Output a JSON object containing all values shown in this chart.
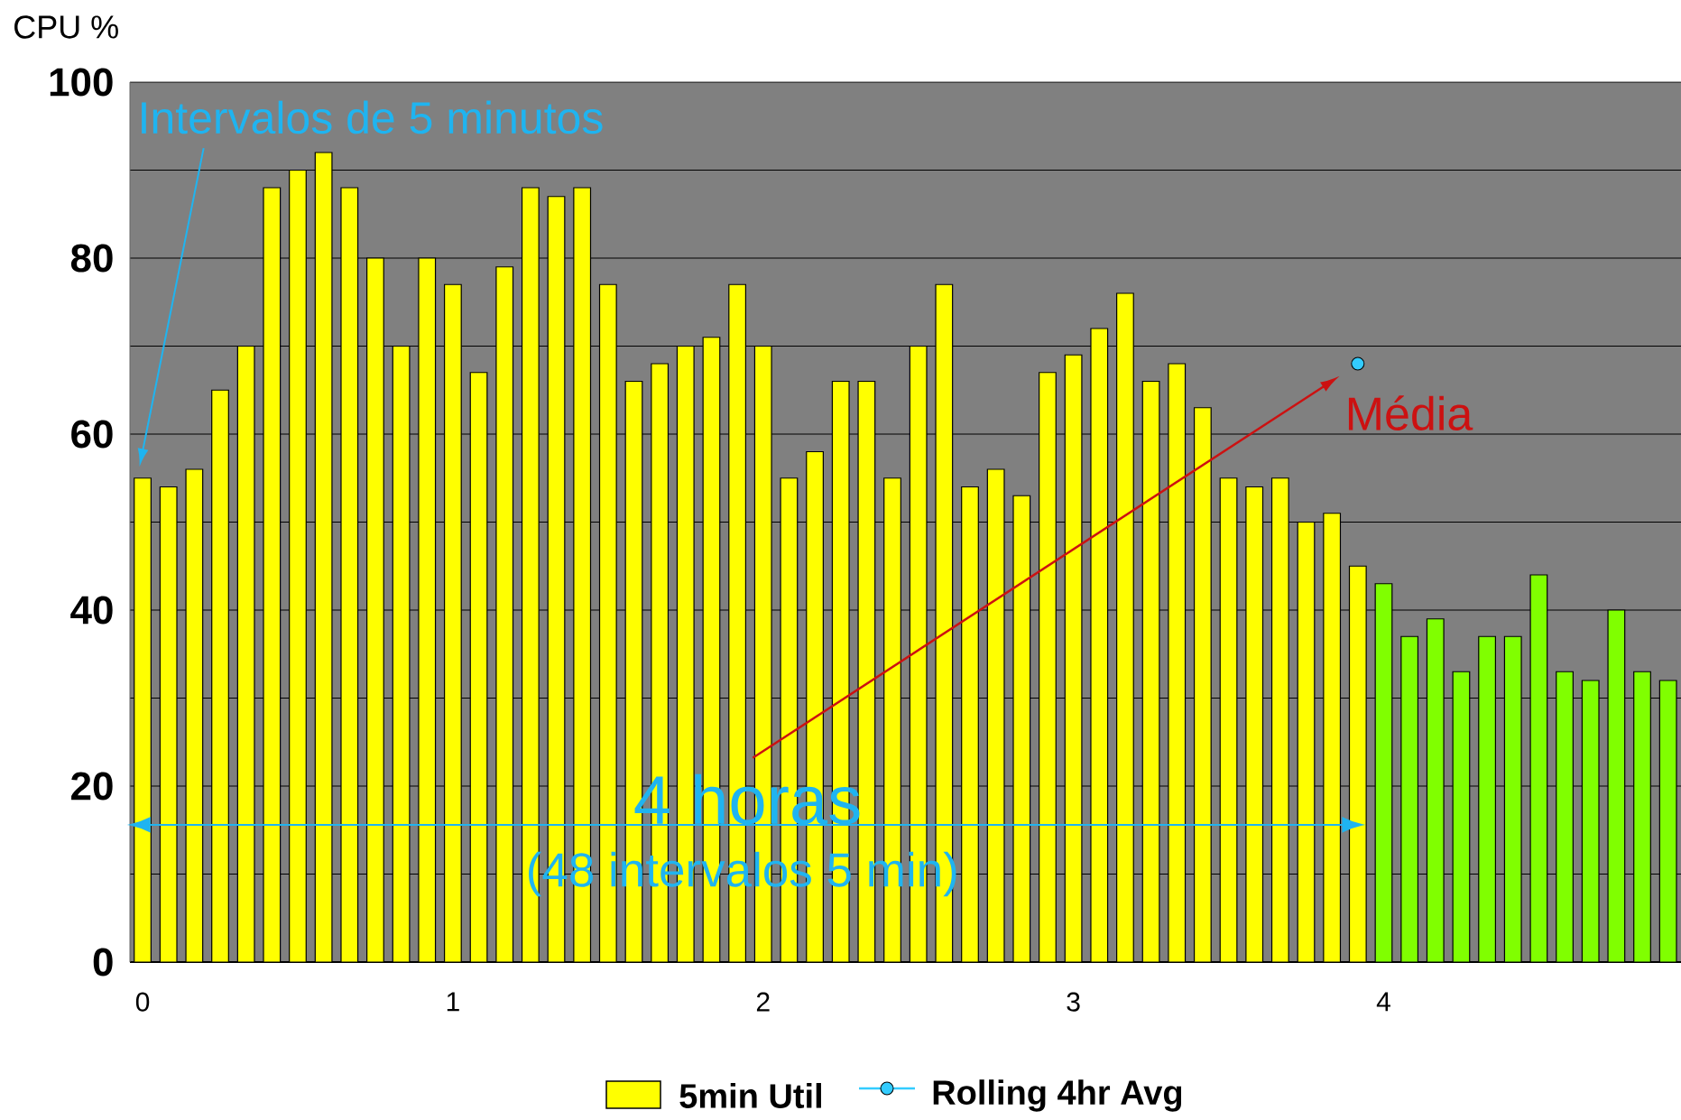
{
  "chart_data": {
    "type": "bar",
    "ylabel": "CPU %",
    "categories": [
      "0",
      null,
      null,
      null,
      null,
      null,
      null,
      null,
      null,
      null,
      null,
      null,
      "1",
      null,
      null,
      null,
      null,
      null,
      null,
      null,
      null,
      null,
      null,
      null,
      "2",
      null,
      null,
      null,
      null,
      null,
      null,
      null,
      null,
      null,
      null,
      null,
      "3",
      null,
      null,
      null,
      null,
      null,
      null,
      null,
      null,
      null,
      null,
      null,
      "4",
      null,
      null,
      null,
      null,
      null,
      null,
      null,
      null,
      null,
      null,
      null
    ],
    "series": [
      {
        "name": "5min Util",
        "color": "#ffff00",
        "colors": [
          "#ffff00",
          "#ffff00",
          "#ffff00",
          "#ffff00",
          "#ffff00",
          "#ffff00",
          "#ffff00",
          "#ffff00",
          "#ffff00",
          "#ffff00",
          "#ffff00",
          "#ffff00",
          "#ffff00",
          "#ffff00",
          "#ffff00",
          "#ffff00",
          "#ffff00",
          "#ffff00",
          "#ffff00",
          "#ffff00",
          "#ffff00",
          "#ffff00",
          "#ffff00",
          "#ffff00",
          "#ffff00",
          "#ffff00",
          "#ffff00",
          "#ffff00",
          "#ffff00",
          "#ffff00",
          "#ffff00",
          "#ffff00",
          "#ffff00",
          "#ffff00",
          "#ffff00",
          "#ffff00",
          "#ffff00",
          "#ffff00",
          "#ffff00",
          "#ffff00",
          "#ffff00",
          "#ffff00",
          "#ffff00",
          "#ffff00",
          "#ffff00",
          "#ffff00",
          "#ffff00",
          "#ffff00",
          "#80ff00",
          "#80ff00",
          "#80ff00",
          "#80ff00",
          "#80ff00",
          "#80ff00",
          "#80ff00",
          "#80ff00",
          "#80ff00",
          "#80ff00",
          "#80ff00",
          "#80ff00"
        ],
        "values": [
          55,
          54,
          56,
          65,
          70,
          88,
          90,
          92,
          88,
          80,
          70,
          80,
          77,
          67,
          79,
          88,
          87,
          88,
          77,
          66,
          68,
          70,
          71,
          77,
          70,
          55,
          58,
          66,
          66,
          55,
          70,
          77,
          54,
          56,
          53,
          67,
          69,
          72,
          76,
          66,
          68,
          63,
          55,
          54,
          55,
          50,
          51,
          45,
          43,
          37,
          39,
          33,
          37,
          37,
          44,
          33,
          32,
          40,
          33,
          32
        ]
      },
      {
        "name": "Rolling 4hr Avg",
        "type": "line",
        "color": "#33ccff",
        "marker": "circle",
        "values": [
          null,
          null,
          null,
          null,
          null,
          null,
          null,
          null,
          null,
          null,
          null,
          null,
          null,
          null,
          null,
          null,
          null,
          null,
          null,
          null,
          null,
          null,
          null,
          null,
          null,
          null,
          null,
          null,
          null,
          null,
          null,
          null,
          null,
          null,
          null,
          null,
          null,
          null,
          null,
          null,
          null,
          null,
          null,
          null,
          null,
          null,
          null,
          68,
          null,
          null,
          null,
          null,
          null,
          null,
          null,
          null,
          null,
          null,
          null,
          null
        ]
      }
    ],
    "ylim": [
      0,
      100
    ],
    "yticks": [
      0,
      {
        "value": 10,
        "label": null
      },
      20,
      {
        "value": 30,
        "label": null
      },
      40,
      {
        "value": 50,
        "label": null
      },
      60,
      {
        "value": 70,
        "label": null
      },
      80,
      {
        "value": 90,
        "label": null
      },
      100
    ],
    "grid": "y",
    "legend": "bottom",
    "annotations": [
      "Intervalos de 5 minutos",
      "Média",
      "4 horas",
      "(48 intervalos 5 min)"
    ]
  }
}
